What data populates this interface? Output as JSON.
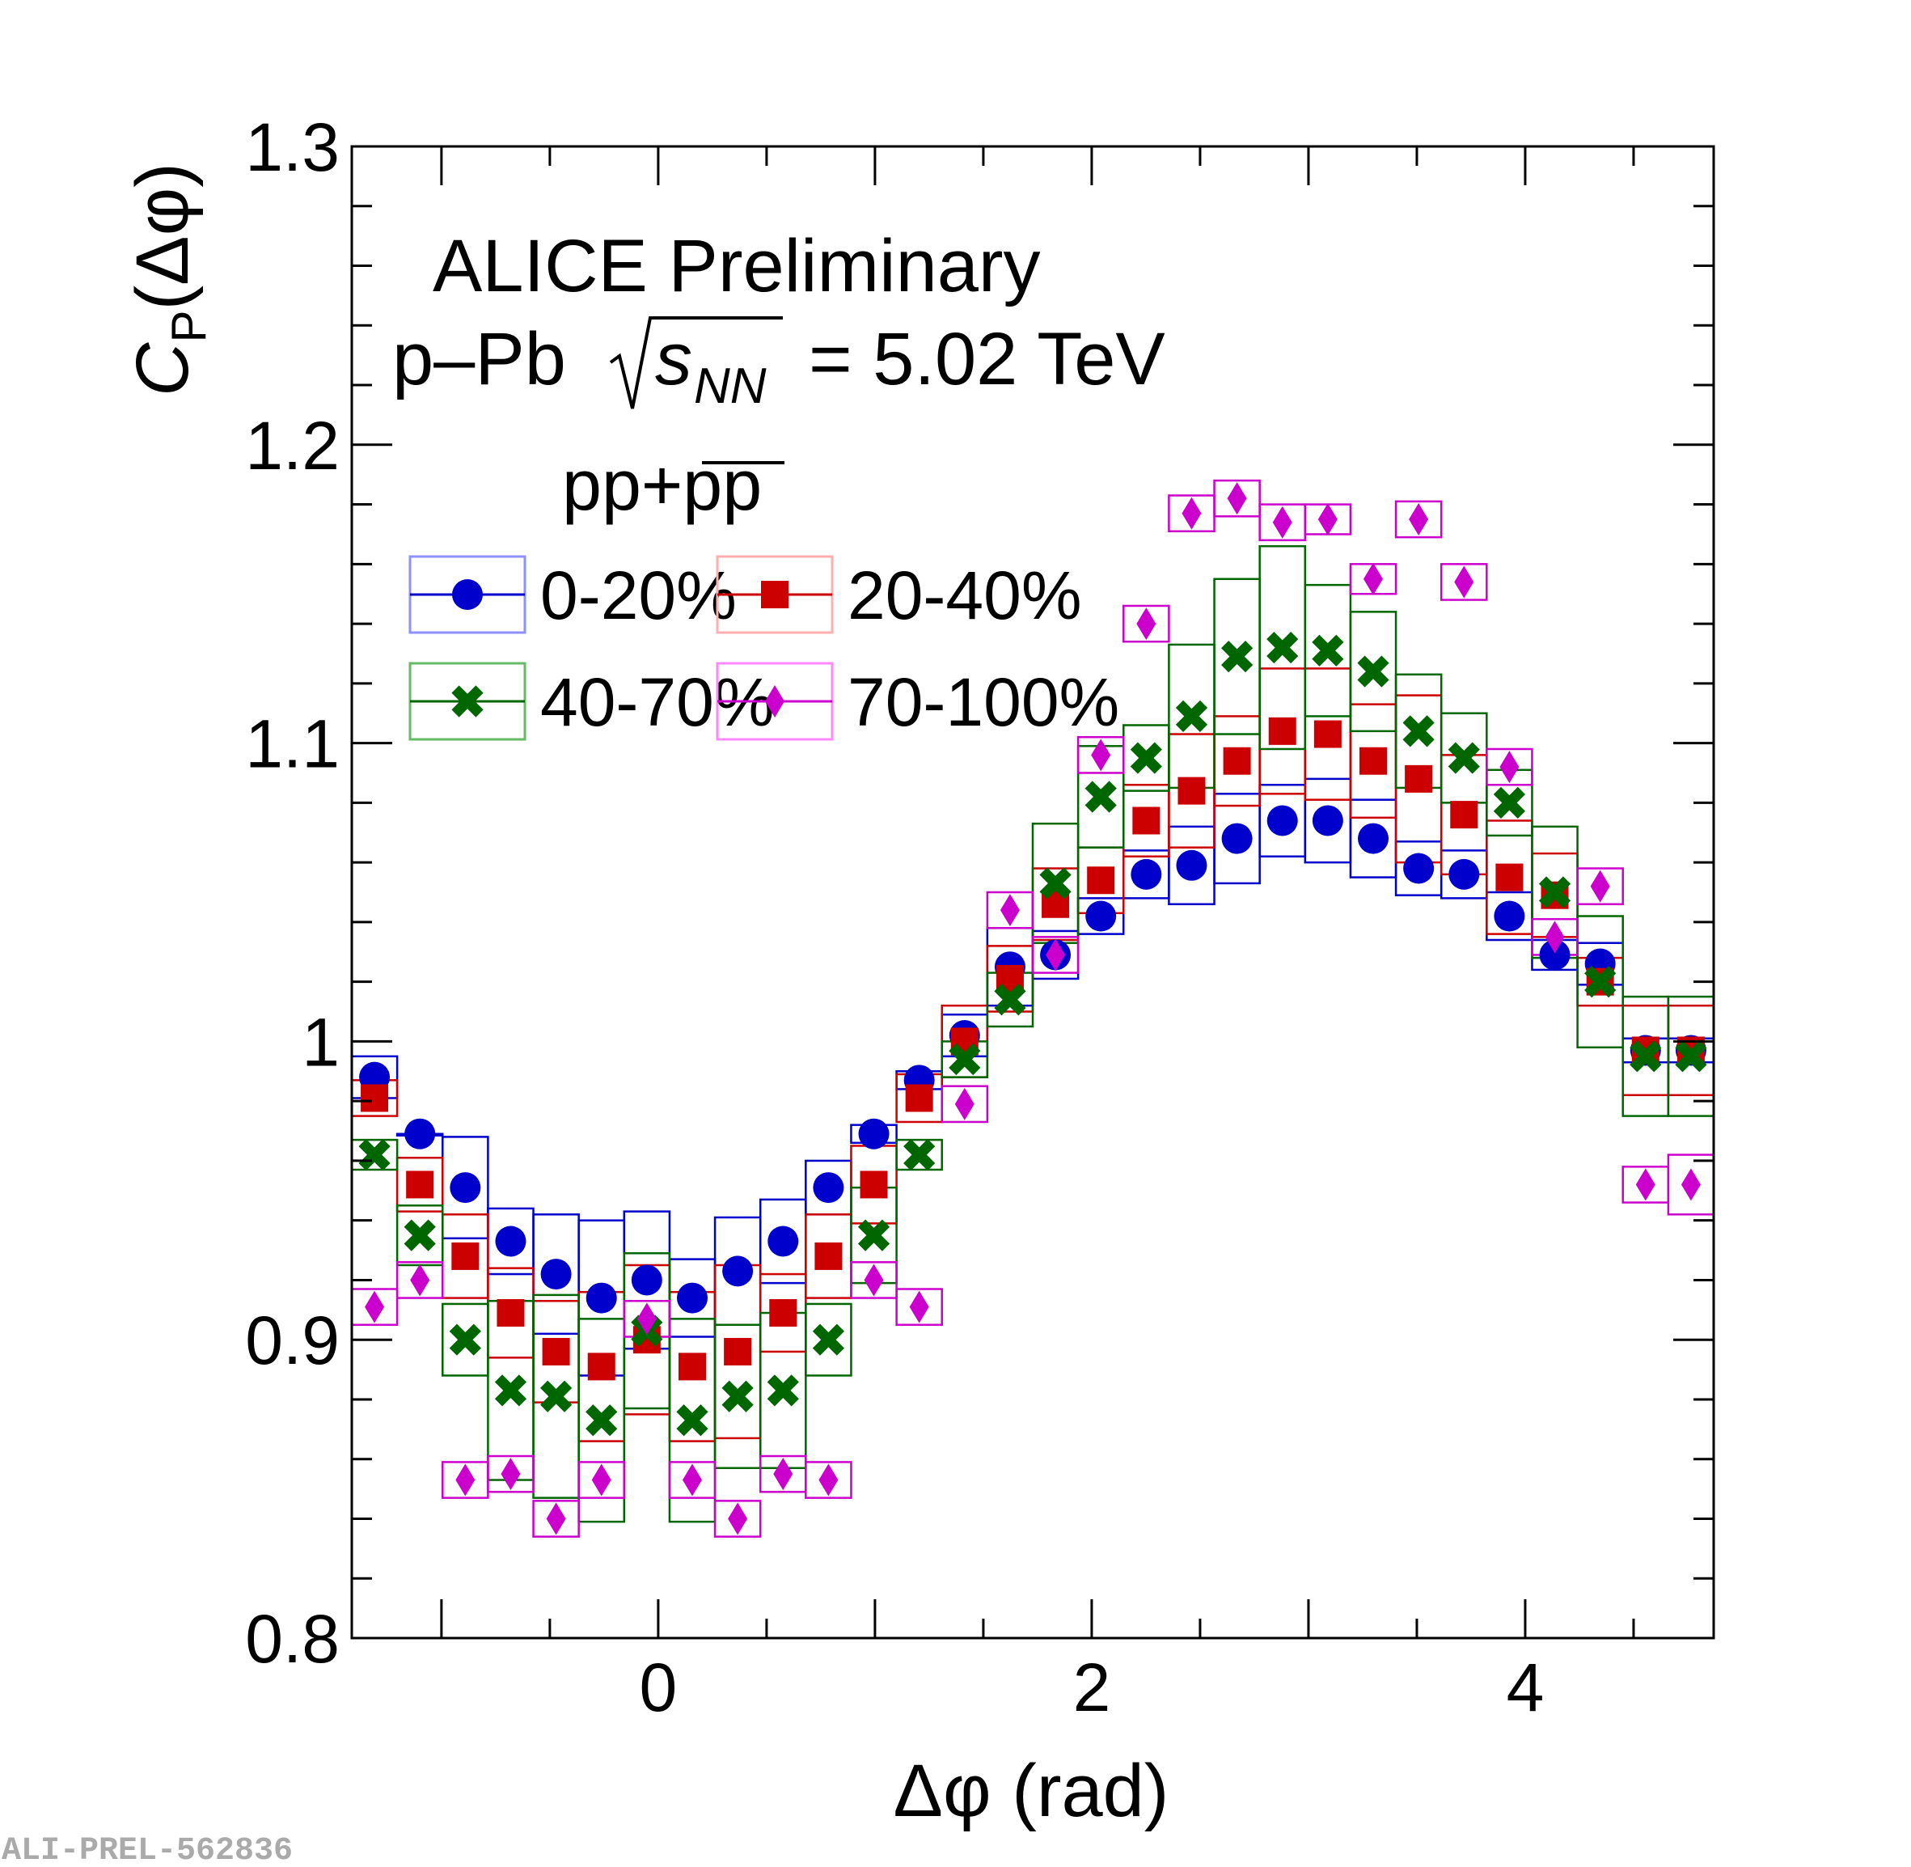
{
  "chart_data": {
    "type": "scatter",
    "title": "ALICE Preliminary",
    "subtitle": {
      "prefix": "p–Pb",
      "sub": "NN",
      "suffix": "= 5.02 TeV"
    },
    "particle": {
      "pp": "pp",
      "plus": "+",
      "antipp": "pp"
    },
    "xlabel": "Δφ (rad)",
    "ylabel": {
      "main": "C",
      "sub": "P",
      "rest": "(Δφ)"
    },
    "xlim": [
      -1.4137,
      4.8695
    ],
    "ylim": [
      0.8,
      1.3
    ],
    "xticks": [
      0,
      2,
      4
    ],
    "xtick_labels": [
      "0",
      "2",
      "4"
    ],
    "yticks": [
      0.8,
      0.9,
      1.0,
      1.1,
      1.2,
      1.3
    ],
    "ytick_labels": [
      "0.8",
      "0.9",
      "1",
      "1.1",
      "1.2",
      "1.3"
    ],
    "watermark": "ALI-PREL-562836",
    "x": [
      -1.309,
      -1.0996,
      -0.8901,
      -0.6807,
      -0.4712,
      -0.2618,
      -0.0524,
      0.1571,
      0.3665,
      0.576,
      0.7854,
      0.9948,
      1.2043,
      1.4137,
      1.6232,
      1.8326,
      2.042,
      2.2515,
      2.4609,
      2.6704,
      2.8798,
      3.0892,
      3.2987,
      3.5081,
      3.7176,
      3.927,
      4.1364,
      4.3459,
      4.5553,
      4.7648
    ],
    "series": [
      {
        "name": "0-20%",
        "color": "#0000cc",
        "box_color": "#0000cc",
        "legend_box_color": "#8f8fff",
        "marker": "circle",
        "values": [
          0.988,
          0.969,
          0.951,
          0.933,
          0.922,
          0.914,
          0.92,
          0.914,
          0.923,
          0.933,
          0.951,
          0.969,
          0.987,
          1.002,
          1.025,
          1.029,
          1.042,
          1.056,
          1.059,
          1.068,
          1.074,
          1.074,
          1.068,
          1.058,
          1.056,
          1.042,
          1.029,
          1.026,
          0.997,
          0.997
        ],
        "syst": [
          0.007,
          0.0,
          0.017,
          0.011,
          0.02,
          0.026,
          0.023,
          0.013,
          0.018,
          0.014,
          0.009,
          0.003,
          0.003,
          0.007,
          0.013,
          0.008,
          0.006,
          0.008,
          0.013,
          0.015,
          0.012,
          0.014,
          0.013,
          0.009,
          0.008,
          0.008,
          0.005,
          0.007,
          0.004,
          0.004
        ]
      },
      {
        "name": "20-40%",
        "color": "#cc0000",
        "box_color": "#cc0000",
        "legend_box_color": "#ffafaf",
        "marker": "square",
        "values": [
          0.981,
          0.952,
          0.928,
          0.909,
          0.896,
          0.891,
          0.9,
          0.891,
          0.896,
          0.909,
          0.928,
          0.952,
          0.981,
          1.0,
          1.021,
          1.046,
          1.054,
          1.074,
          1.084,
          1.094,
          1.104,
          1.103,
          1.094,
          1.088,
          1.076,
          1.055,
          1.049,
          1.02,
          0.997,
          0.997
        ],
        "syst": [
          0.006,
          0.009,
          0.014,
          0.015,
          0.017,
          0.025,
          0.025,
          0.025,
          0.029,
          0.013,
          0.014,
          0.013,
          0.008,
          0.012,
          0.011,
          0.012,
          0.011,
          0.012,
          0.019,
          0.015,
          0.021,
          0.022,
          0.019,
          0.028,
          0.02,
          0.019,
          0.014,
          0.008,
          0.015,
          0.015
        ]
      },
      {
        "name": "40-70%",
        "color": "#006600",
        "box_color": "#006600",
        "legend_box_color": "#66bb66",
        "marker": "cross",
        "values": [
          0.962,
          0.935,
          0.9,
          0.883,
          0.881,
          0.873,
          0.903,
          0.873,
          0.881,
          0.883,
          0.9,
          0.935,
          0.962,
          0.994,
          1.014,
          1.053,
          1.082,
          1.095,
          1.109,
          1.129,
          1.132,
          1.131,
          1.124,
          1.104,
          1.095,
          1.08,
          1.05,
          1.02,
          0.995,
          0.995
        ],
        "syst": [
          0.005,
          0.01,
          0.012,
          0.03,
          0.034,
          0.034,
          0.026,
          0.034,
          0.024,
          0.026,
          0.012,
          0.016,
          0.005,
          0.006,
          0.009,
          0.02,
          0.017,
          0.011,
          0.024,
          0.026,
          0.034,
          0.022,
          0.02,
          0.019,
          0.015,
          0.011,
          0.022,
          0.022,
          0.02,
          0.02
        ]
      },
      {
        "name": "70-100%",
        "color": "#cc00cc",
        "box_color": "#cc00cc",
        "legend_box_color": "#ff88ff",
        "marker": "diamond",
        "values": [
          0.911,
          0.92,
          0.853,
          0.855,
          0.84,
          0.853,
          0.907,
          0.853,
          0.84,
          0.855,
          0.853,
          0.92,
          0.911,
          0.979,
          1.044,
          1.029,
          1.096,
          1.14,
          1.177,
          1.182,
          1.174,
          1.175,
          1.155,
          1.175,
          1.154,
          1.092,
          1.035,
          1.052,
          0.952,
          0.952
        ],
        "syst": [
          0.006,
          0.006,
          0.006,
          0.006,
          0.006,
          0.006,
          0.006,
          0.006,
          0.006,
          0.006,
          0.006,
          0.006,
          0.006,
          0.006,
          0.006,
          0.006,
          0.006,
          0.006,
          0.006,
          0.006,
          0.006,
          0.005,
          0.005,
          0.006,
          0.006,
          0.006,
          0.006,
          0.006,
          0.006,
          0.01
        ]
      }
    ]
  }
}
